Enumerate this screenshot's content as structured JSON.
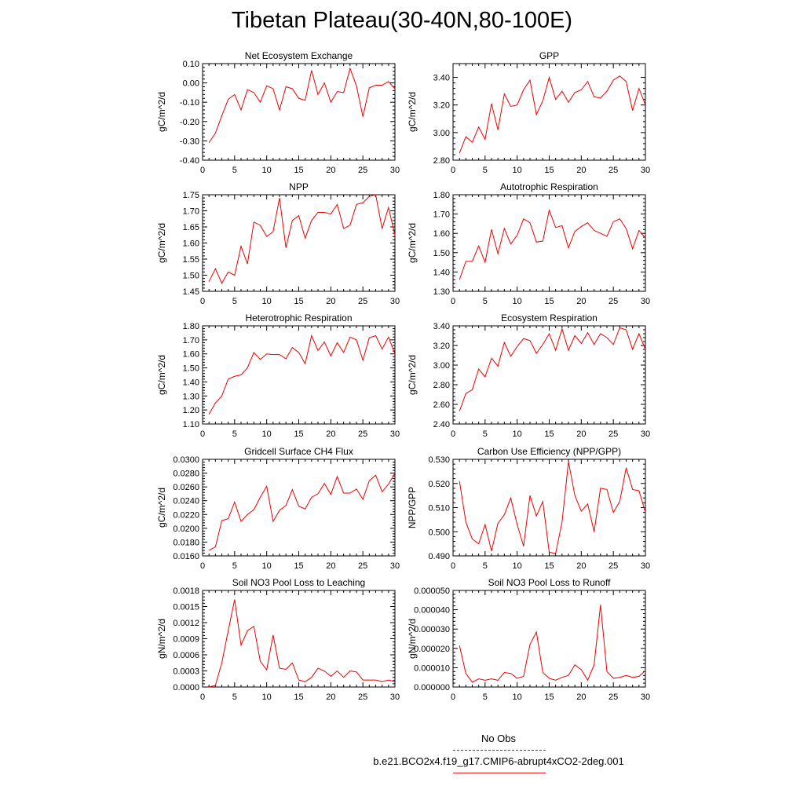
{
  "title": "Tibetan Plateau(30-40N,80-100E)",
  "legend": {
    "entries": [
      {
        "label": "No Obs",
        "color": "#3333cc",
        "style": "dashed"
      },
      {
        "label": "b.e21.BCO2x4.f19_g17.CMIP6-abrupt4xCO2-2deg.001",
        "color": "#ee2222",
        "style": "solid"
      }
    ]
  },
  "chart_data": [
    {
      "type": "line",
      "title": "Net Ecosystem Exchange",
      "ylabel": "gC/m^2/d",
      "color": "#ee0000",
      "xlim": [
        0,
        30
      ],
      "ylim": [
        -0.4,
        0.1
      ],
      "xticks": [
        0,
        5,
        10,
        15,
        20,
        25,
        30
      ],
      "xtick_labels": [
        "0",
        "5",
        "10",
        "15",
        "20",
        "25",
        "30"
      ],
      "yticks": [
        -0.4,
        -0.3,
        -0.2,
        -0.1,
        0.0,
        0.1
      ],
      "ytick_labels": [
        "-0.40",
        "-0.30",
        "-0.20",
        "-0.10",
        "0.00",
        "0.10"
      ],
      "x": [
        1,
        2,
        3,
        4,
        5,
        6,
        7,
        8,
        9,
        10,
        11,
        12,
        13,
        14,
        15,
        16,
        17,
        18,
        19,
        20,
        21,
        22,
        23,
        24,
        25,
        26,
        27,
        28,
        29,
        30
      ],
      "values": [
        -0.31,
        -0.26,
        -0.17,
        -0.085,
        -0.06,
        -0.14,
        -0.035,
        -0.05,
        -0.1,
        -0.015,
        -0.03,
        -0.14,
        -0.02,
        -0.03,
        -0.08,
        -0.09,
        0.065,
        -0.06,
        0.0,
        -0.1,
        -0.045,
        -0.05,
        0.075,
        -0.015,
        -0.175,
        -0.025,
        -0.012,
        -0.012,
        0.007,
        -0.03
      ]
    },
    {
      "type": "line",
      "title": "GPP",
      "ylabel": "gC/m^2/d",
      "color": "#ee0000",
      "xlim": [
        0,
        30
      ],
      "ylim": [
        2.8,
        3.5
      ],
      "xticks": [
        0,
        5,
        10,
        15,
        20,
        25,
        30
      ],
      "xtick_labels": [
        "0",
        "5",
        "10",
        "15",
        "20",
        "25",
        "30"
      ],
      "yticks": [
        2.8,
        3.0,
        3.2,
        3.4
      ],
      "ytick_labels": [
        "2.80",
        "3.00",
        "3.20",
        "3.40"
      ],
      "x": [
        1,
        2,
        3,
        4,
        5,
        6,
        7,
        8,
        9,
        10,
        11,
        12,
        13,
        14,
        15,
        16,
        17,
        18,
        19,
        20,
        21,
        22,
        23,
        24,
        25,
        26,
        27,
        28,
        29,
        30
      ],
      "values": [
        2.85,
        2.97,
        2.93,
        3.04,
        2.95,
        3.21,
        3.02,
        3.28,
        3.19,
        3.2,
        3.31,
        3.38,
        3.13,
        3.23,
        3.4,
        3.24,
        3.3,
        3.22,
        3.29,
        3.31,
        3.37,
        3.26,
        3.25,
        3.3,
        3.38,
        3.41,
        3.37,
        3.16,
        3.32,
        3.2
      ]
    },
    {
      "type": "line",
      "title": "NPP",
      "ylabel": "gC/m^2/d",
      "color": "#ee0000",
      "xlim": [
        0,
        30
      ],
      "ylim": [
        1.45,
        1.75
      ],
      "xticks": [
        0,
        5,
        10,
        15,
        20,
        25,
        30
      ],
      "xtick_labels": [
        "0",
        "5",
        "10",
        "15",
        "20",
        "25",
        "30"
      ],
      "yticks": [
        1.45,
        1.5,
        1.55,
        1.6,
        1.65,
        1.7,
        1.75
      ],
      "ytick_labels": [
        "1.45",
        "1.50",
        "1.55",
        "1.60",
        "1.65",
        "1.70",
        "1.75"
      ],
      "x": [
        1,
        2,
        3,
        4,
        5,
        6,
        7,
        8,
        9,
        10,
        11,
        12,
        13,
        14,
        15,
        16,
        17,
        18,
        19,
        20,
        21,
        22,
        23,
        24,
        25,
        26,
        27,
        28,
        29,
        30
      ],
      "values": [
        1.48,
        1.52,
        1.475,
        1.51,
        1.5,
        1.59,
        1.535,
        1.665,
        1.655,
        1.62,
        1.635,
        1.74,
        1.585,
        1.67,
        1.685,
        1.615,
        1.67,
        1.695,
        1.695,
        1.69,
        1.72,
        1.645,
        1.655,
        1.72,
        1.725,
        1.745,
        1.75,
        1.645,
        1.71,
        1.625
      ]
    },
    {
      "type": "line",
      "title": "Autotrophic Respiration",
      "ylabel": "gC/m^2/d",
      "color": "#ee0000",
      "xlim": [
        0,
        30
      ],
      "ylim": [
        1.3,
        1.8
      ],
      "xticks": [
        0,
        5,
        10,
        15,
        20,
        25,
        30
      ],
      "xtick_labels": [
        "0",
        "5",
        "10",
        "15",
        "20",
        "25",
        "30"
      ],
      "yticks": [
        1.3,
        1.4,
        1.5,
        1.6,
        1.7,
        1.8
      ],
      "ytick_labels": [
        "1.30",
        "1.40",
        "1.50",
        "1.60",
        "1.70",
        "1.80"
      ],
      "x": [
        1,
        2,
        3,
        4,
        5,
        6,
        7,
        8,
        9,
        10,
        11,
        12,
        13,
        14,
        15,
        16,
        17,
        18,
        19,
        20,
        21,
        22,
        23,
        24,
        25,
        26,
        27,
        28,
        29,
        30
      ],
      "values": [
        1.36,
        1.455,
        1.455,
        1.535,
        1.45,
        1.62,
        1.495,
        1.625,
        1.545,
        1.59,
        1.675,
        1.655,
        1.555,
        1.56,
        1.72,
        1.63,
        1.64,
        1.525,
        1.61,
        1.635,
        1.655,
        1.615,
        1.6,
        1.585,
        1.66,
        1.675,
        1.625,
        1.52,
        1.615,
        1.575
      ]
    },
    {
      "type": "line",
      "title": "Heterotrophic Respiration",
      "ylabel": "gC/m^2/d",
      "color": "#ee0000",
      "xlim": [
        0,
        30
      ],
      "ylim": [
        1.1,
        1.8
      ],
      "xticks": [
        0,
        5,
        10,
        15,
        20,
        25,
        30
      ],
      "xtick_labels": [
        "0",
        "5",
        "10",
        "15",
        "20",
        "25",
        "30"
      ],
      "yticks": [
        1.1,
        1.2,
        1.3,
        1.4,
        1.5,
        1.6,
        1.7,
        1.8
      ],
      "ytick_labels": [
        "1.10",
        "1.20",
        "1.30",
        "1.40",
        "1.50",
        "1.60",
        "1.70",
        "1.80"
      ],
      "x": [
        1,
        2,
        3,
        4,
        5,
        6,
        7,
        8,
        9,
        10,
        11,
        12,
        13,
        14,
        15,
        16,
        17,
        18,
        19,
        20,
        21,
        22,
        23,
        24,
        25,
        26,
        27,
        28,
        29,
        30
      ],
      "values": [
        1.17,
        1.25,
        1.3,
        1.42,
        1.44,
        1.45,
        1.5,
        1.61,
        1.56,
        1.6,
        1.595,
        1.595,
        1.565,
        1.645,
        1.61,
        1.53,
        1.73,
        1.625,
        1.685,
        1.585,
        1.68,
        1.61,
        1.72,
        1.7,
        1.555,
        1.715,
        1.73,
        1.635,
        1.72,
        1.6
      ]
    },
    {
      "type": "line",
      "title": "Ecosystem Respiration",
      "ylabel": "gC/m^2/d",
      "color": "#ee0000",
      "xlim": [
        0,
        30
      ],
      "ylim": [
        2.4,
        3.4
      ],
      "xticks": [
        0,
        5,
        10,
        15,
        20,
        25,
        30
      ],
      "xtick_labels": [
        "0",
        "5",
        "10",
        "15",
        "20",
        "25",
        "30"
      ],
      "yticks": [
        2.4,
        2.6,
        2.8,
        3.0,
        3.2,
        3.4
      ],
      "ytick_labels": [
        "2.40",
        "2.60",
        "2.80",
        "3.00",
        "3.20",
        "3.40"
      ],
      "x": [
        1,
        2,
        3,
        4,
        5,
        6,
        7,
        8,
        9,
        10,
        11,
        12,
        13,
        14,
        15,
        16,
        17,
        18,
        19,
        20,
        21,
        22,
        23,
        24,
        25,
        26,
        27,
        28,
        29,
        30
      ],
      "values": [
        2.53,
        2.71,
        2.75,
        2.96,
        2.88,
        3.07,
        2.99,
        3.23,
        3.09,
        3.19,
        3.27,
        3.25,
        3.12,
        3.21,
        3.32,
        3.15,
        3.37,
        3.15,
        3.3,
        3.22,
        3.33,
        3.21,
        3.32,
        3.28,
        3.21,
        3.38,
        3.36,
        3.16,
        3.32,
        3.16
      ]
    },
    {
      "type": "line",
      "title": "Gridcell Surface CH4 Flux",
      "ylabel": "gC/m^2/d",
      "color": "#ee0000",
      "xlim": [
        0,
        30
      ],
      "ylim": [
        0.016,
        0.03
      ],
      "xticks": [
        0,
        5,
        10,
        15,
        20,
        25,
        30
      ],
      "xtick_labels": [
        "0",
        "5",
        "10",
        "15",
        "20",
        "25",
        "30"
      ],
      "yticks": [
        0.016,
        0.018,
        0.02,
        0.022,
        0.024,
        0.026,
        0.028,
        0.03
      ],
      "ytick_labels": [
        "0.0160",
        "0.0180",
        "0.0200",
        "0.0220",
        "0.0240",
        "0.0260",
        "0.0280",
        "0.0300"
      ],
      "x": [
        1,
        2,
        3,
        4,
        5,
        6,
        7,
        8,
        9,
        10,
        11,
        12,
        13,
        14,
        15,
        16,
        17,
        18,
        19,
        20,
        21,
        22,
        23,
        24,
        25,
        26,
        27,
        28,
        29,
        30
      ],
      "values": [
        0.0168,
        0.0173,
        0.0211,
        0.0214,
        0.0238,
        0.021,
        0.022,
        0.0227,
        0.0245,
        0.0261,
        0.021,
        0.0226,
        0.0233,
        0.0256,
        0.0232,
        0.0228,
        0.0245,
        0.025,
        0.0265,
        0.0249,
        0.0275,
        0.0251,
        0.0251,
        0.0257,
        0.0242,
        0.0269,
        0.0277,
        0.0253,
        0.0264,
        0.028
      ]
    },
    {
      "type": "line",
      "title": "Carbon Use Efficiency (NPP/GPP)",
      "ylabel": "NPP/GPP",
      "color": "#ee0000",
      "xlim": [
        0,
        30
      ],
      "ylim": [
        0.49,
        0.53
      ],
      "xticks": [
        0,
        5,
        10,
        15,
        20,
        25,
        30
      ],
      "xtick_labels": [
        "0",
        "5",
        "10",
        "15",
        "20",
        "25",
        "30"
      ],
      "yticks": [
        0.49,
        0.5,
        0.51,
        0.52,
        0.53
      ],
      "ytick_labels": [
        "0.490",
        "0.500",
        "0.510",
        "0.520",
        "0.530"
      ],
      "x": [
        1,
        2,
        3,
        4,
        5,
        6,
        7,
        8,
        9,
        10,
        11,
        12,
        13,
        14,
        15,
        16,
        17,
        18,
        19,
        20,
        21,
        22,
        23,
        24,
        25,
        26,
        27,
        28,
        29,
        30
      ],
      "values": [
        0.521,
        0.504,
        0.497,
        0.495,
        0.503,
        0.492,
        0.5035,
        0.507,
        0.514,
        0.503,
        0.494,
        0.515,
        0.5065,
        0.5125,
        0.4915,
        0.491,
        0.504,
        0.529,
        0.515,
        0.5085,
        0.5115,
        0.5,
        0.518,
        0.5175,
        0.508,
        0.5125,
        0.5265,
        0.5175,
        0.517,
        0.508
      ]
    },
    {
      "type": "line",
      "title": "Soil NO3 Pool Loss to Leaching",
      "ylabel": "gN/m^2/d",
      "color": "#ee0000",
      "xlim": [
        0,
        30
      ],
      "ylim": [
        0.0,
        0.0018
      ],
      "xticks": [
        0,
        5,
        10,
        15,
        20,
        25,
        30
      ],
      "xtick_labels": [
        "0",
        "5",
        "10",
        "15",
        "20",
        "25",
        "30"
      ],
      "yticks": [
        0.0,
        0.0003,
        0.0006,
        0.0009,
        0.0012,
        0.0015,
        0.0018
      ],
      "ytick_labels": [
        "0.0000",
        "0.0003",
        "0.0006",
        "0.0009",
        "0.0012",
        "0.0015",
        "0.0018"
      ],
      "x": [
        1,
        2,
        3,
        4,
        5,
        6,
        7,
        8,
        9,
        10,
        11,
        12,
        13,
        14,
        15,
        16,
        17,
        18,
        19,
        20,
        21,
        22,
        23,
        24,
        25,
        26,
        27,
        28,
        29,
        30
      ],
      "values": [
        0.0,
        3e-05,
        0.00045,
        0.00105,
        0.00163,
        0.00078,
        0.00105,
        0.00113,
        0.00048,
        0.00032,
        0.00097,
        0.00035,
        0.00033,
        0.00045,
        0.00013,
        0.0001,
        0.00018,
        0.00035,
        0.0003,
        0.0002,
        0.0003,
        0.00018,
        0.0003,
        0.00028,
        0.00013,
        0.00013,
        0.00013,
        0.0001,
        0.00013,
        0.0001
      ]
    },
    {
      "type": "line",
      "title": "Soil NO3 Pool Loss to Runoff",
      "ylabel": "gN/m^2/d",
      "color": "#ee0000",
      "xlim": [
        0,
        30
      ],
      "ylim": [
        0.0,
        5e-05
      ],
      "xticks": [
        0,
        5,
        10,
        15,
        20,
        25,
        30
      ],
      "xtick_labels": [
        "0",
        "5",
        "10",
        "15",
        "20",
        "25",
        "30"
      ],
      "yticks": [
        0.0,
        1e-05,
        2e-05,
        3e-05,
        4e-05,
        5e-05
      ],
      "ytick_labels": [
        "0.000000",
        "0.000010",
        "0.000020",
        "0.000030",
        "0.000040",
        "0.000050"
      ],
      "x": [
        1,
        2,
        3,
        4,
        5,
        6,
        7,
        8,
        9,
        10,
        11,
        12,
        13,
        14,
        15,
        16,
        17,
        18,
        19,
        20,
        21,
        22,
        23,
        24,
        25,
        26,
        27,
        28,
        29,
        30
      ],
      "values": [
        2.15e-05,
        7e-06,
        2.5e-06,
        4.2e-06,
        3.5e-06,
        4.2e-06,
        3.5e-06,
        7.5e-06,
        7e-06,
        4.5e-06,
        5.5e-06,
        2.2e-05,
        2.85e-05,
        7.5e-06,
        4.5e-06,
        3.5e-06,
        5e-06,
        6e-06,
        1.15e-05,
        9e-06,
        3.5e-06,
        1.15e-05,
        4.25e-05,
        8e-06,
        4.5e-06,
        5e-06,
        6e-06,
        5e-06,
        5.5e-06,
        8.5e-06
      ]
    }
  ]
}
